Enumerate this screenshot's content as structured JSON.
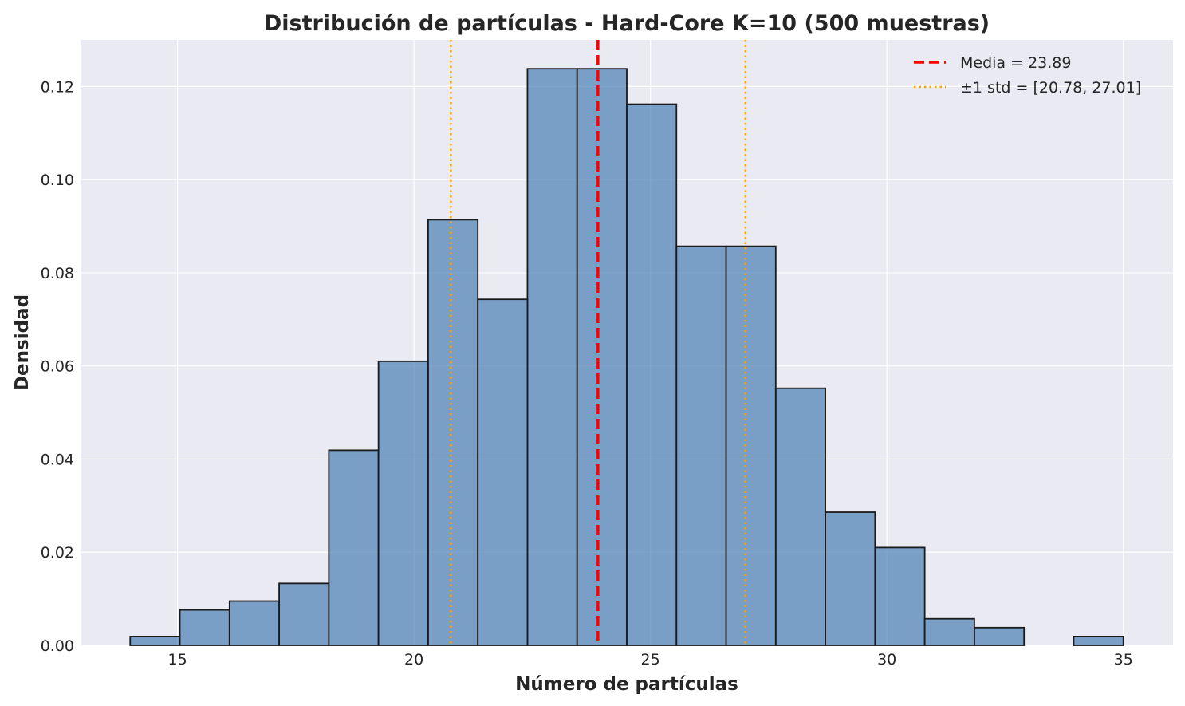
{
  "chart_data": {
    "type": "bar",
    "subtype": "histogram",
    "title": "Distribución de partículas - Hard-Core K=10 (500 muestras)",
    "xlabel": "Número de partículas",
    "ylabel": "Densidad",
    "xlim": [
      12.95,
      36.05
    ],
    "ylim": [
      0,
      0.13
    ],
    "xticks": [
      15,
      20,
      25,
      30,
      35
    ],
    "yticks": [
      0.0,
      0.02,
      0.04,
      0.06,
      0.08,
      0.1,
      0.12
    ],
    "xtick_labels": [
      "15",
      "20",
      "25",
      "30",
      "35"
    ],
    "ytick_labels": [
      "0.00",
      "0.02",
      "0.04",
      "0.06",
      "0.08",
      "0.10",
      "0.12"
    ],
    "bins": {
      "start": 14,
      "width": 1.05,
      "densities": [
        0.0019,
        0.0076,
        0.0095,
        0.0133,
        0.0419,
        0.061,
        0.0914,
        0.0743,
        0.1238,
        0.1238,
        0.1162,
        0.0857,
        0.0857,
        0.0552,
        0.0286,
        0.021,
        0.0057,
        0.0038,
        0.0,
        0.0019
      ]
    },
    "bar_color": "#4a7fb5",
    "bar_edge_color": "#1a1a1a",
    "vlines": [
      {
        "x": 23.89,
        "style": "dashed",
        "color": "#ff0000"
      },
      {
        "x": 20.78,
        "style": "dotted",
        "color": "#ffa500"
      },
      {
        "x": 27.01,
        "style": "dotted",
        "color": "#ffa500"
      }
    ],
    "legend": {
      "position": "top-right",
      "entries": [
        {
          "label": "Media = 23.89",
          "style": "dashed",
          "color": "#ff0000"
        },
        {
          "label": "±1 std = [20.78, 27.01]",
          "style": "dotted",
          "color": "#ffa500"
        }
      ]
    },
    "grid": true,
    "background_color": "#eaeaf2"
  }
}
